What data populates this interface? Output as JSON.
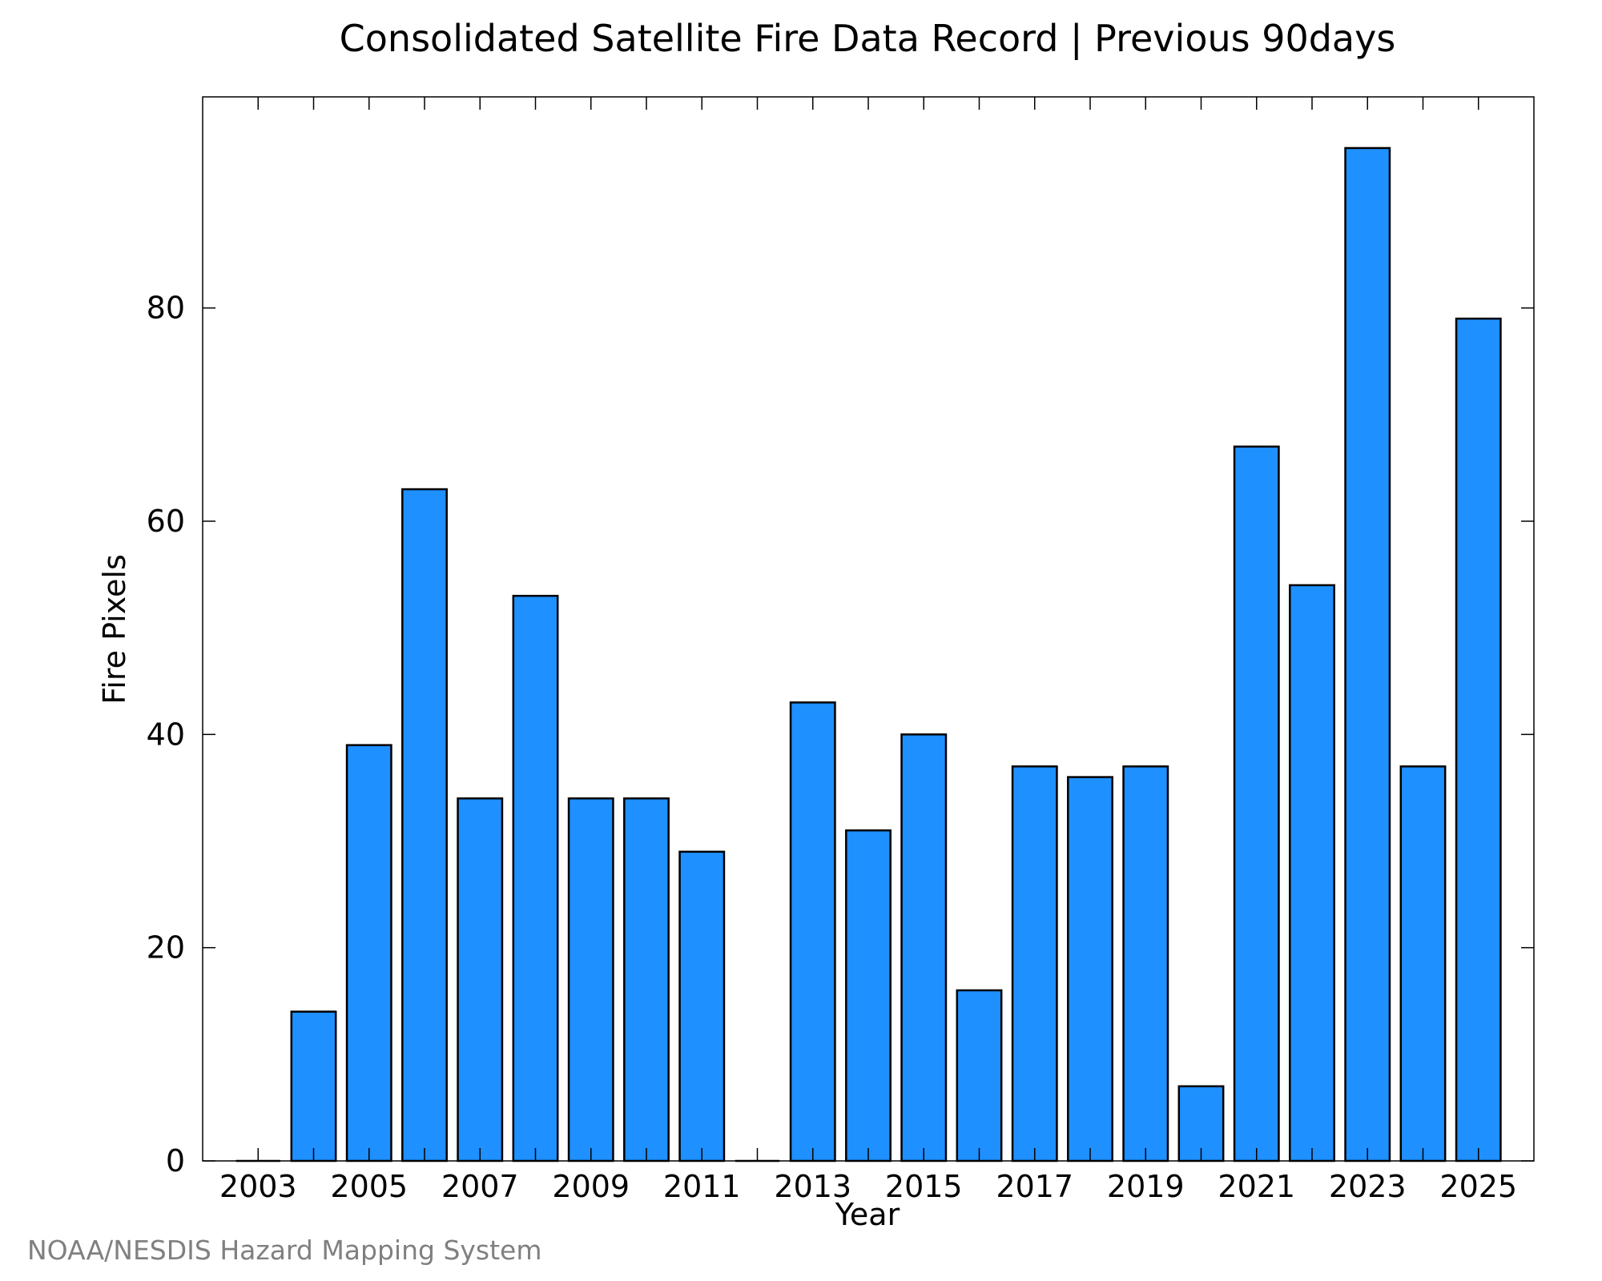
{
  "chart_data": {
    "type": "bar",
    "title": "Consolidated Satellite Fire Data Record | Previous 90days",
    "xlabel": "Year",
    "ylabel": "Fire Pixels",
    "x": [
      2003,
      2004,
      2005,
      2006,
      2007,
      2008,
      2009,
      2010,
      2011,
      2012,
      2013,
      2014,
      2015,
      2016,
      2017,
      2018,
      2019,
      2020,
      2021,
      2022,
      2023,
      2024,
      2025
    ],
    "values": [
      0,
      14,
      39,
      63,
      34,
      53,
      34,
      34,
      29,
      0,
      43,
      31,
      40,
      16,
      37,
      36,
      37,
      7,
      67,
      54,
      95,
      37,
      79
    ],
    "ylim": [
      0,
      99.8
    ],
    "yticks": [
      0,
      20,
      40,
      60,
      80
    ],
    "xticks": [
      2003,
      2005,
      2007,
      2009,
      2011,
      2013,
      2015,
      2017,
      2019,
      2021,
      2023,
      2025
    ],
    "grid": false,
    "legend": "none",
    "bar_color": "#1e90ff",
    "bar_edge_color": "#000000"
  },
  "footer": {
    "credit": "NOAA/NESDIS Hazard Mapping System"
  }
}
